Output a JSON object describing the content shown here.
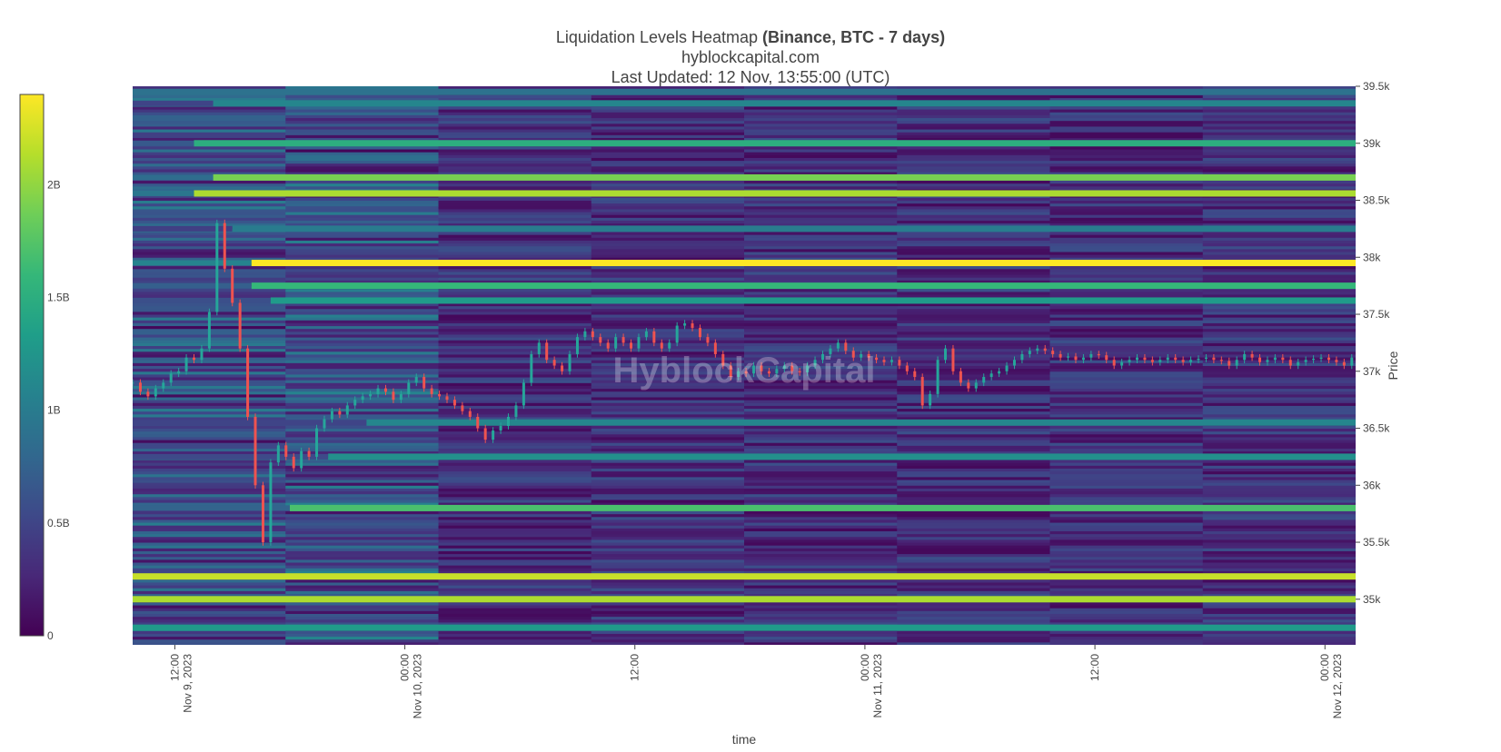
{
  "header": {
    "title_main": "Liquidation Levels Heatmap ",
    "title_bold": "(Binance, BTC - 7 days)",
    "subtitle": "hyblockcapital.com",
    "updated": "Last Updated: 12 Nov, 13:55:00 (UTC)"
  },
  "watermark": "HyblockCapital",
  "colors": {
    "scale": [
      "#440154",
      "#482878",
      "#3e4989",
      "#31688e",
      "#26828e",
      "#1f9e89",
      "#35b779",
      "#6ece58",
      "#b5de2b",
      "#fde725"
    ],
    "candle_up": "#26a69a",
    "candle_down": "#ef5350"
  },
  "chart_data": {
    "type": "heatmap",
    "title": "Liquidation Levels Heatmap (Binance, BTC - 7 days)",
    "xlabel": "time",
    "ylabel": "Price",
    "y_range": [
      34600,
      39500
    ],
    "y_ticks": [
      {
        "value": 35000,
        "label": "35k"
      },
      {
        "value": 35500,
        "label": "35.5k"
      },
      {
        "value": 36000,
        "label": "36k"
      },
      {
        "value": 36500,
        "label": "36.5k"
      },
      {
        "value": 37000,
        "label": "37k"
      },
      {
        "value": 37500,
        "label": "37.5k"
      },
      {
        "value": 38000,
        "label": "38k"
      },
      {
        "value": 38500,
        "label": "38.5k"
      },
      {
        "value": 39000,
        "label": "39k"
      },
      {
        "value": 39500,
        "label": "39.5k"
      }
    ],
    "x_range_hours": [
      -2.2,
      61.6
    ],
    "x_ticks": [
      {
        "hour": 0,
        "line1": "12:00",
        "line2": "Nov 9, 2023"
      },
      {
        "hour": 12,
        "line1": "00:00",
        "line2": "Nov 10, 2023"
      },
      {
        "hour": 24,
        "line1": "12:00",
        "line2": ""
      },
      {
        "hour": 36,
        "line1": "00:00",
        "line2": "Nov 11, 2023"
      },
      {
        "hour": 48,
        "line1": "12:00",
        "line2": ""
      },
      {
        "hour": 60,
        "line1": "00:00",
        "line2": "Nov 12, 2023"
      },
      {
        "hour": 72,
        "line1": "12:00",
        "line2": ""
      }
    ],
    "colorbar": {
      "min": 0,
      "max": 2400000000.0,
      "ticks": [
        {
          "value": 0,
          "label": "0"
        },
        {
          "value": 500000000.0,
          "label": "0.5B"
        },
        {
          "value": 1000000000.0,
          "label": "1B"
        },
        {
          "value": 1500000000.0,
          "label": "1.5B"
        },
        {
          "value": 2000000000.0,
          "label": "2B"
        }
      ]
    },
    "liquidation_bands": [
      {
        "price": 39450,
        "value": 900000000.0,
        "start_hour": -2.2
      },
      {
        "price": 39350,
        "value": 1100000000.0,
        "start_hour": 2
      },
      {
        "price": 39000,
        "value": 1500000000.0,
        "start_hour": 1
      },
      {
        "price": 38700,
        "value": 1900000000.0,
        "start_hour": 2
      },
      {
        "price": 38560,
        "value": 2100000000.0,
        "start_hour": 1
      },
      {
        "price": 38250,
        "value": 1000000000.0,
        "start_hour": 3
      },
      {
        "price": 37950,
        "value": 2400000000.0,
        "start_hour": 4
      },
      {
        "price": 37750,
        "value": 1600000000.0,
        "start_hour": 4
      },
      {
        "price": 37620,
        "value": 1300000000.0,
        "start_hour": 5
      },
      {
        "price": 36550,
        "value": 1100000000.0,
        "start_hour": 10
      },
      {
        "price": 36250,
        "value": 1200000000.0,
        "start_hour": 8
      },
      {
        "price": 35800,
        "value": 1700000000.0,
        "start_hour": 6
      },
      {
        "price": 35200,
        "value": 2200000000.0,
        "start_hour": -2.2
      },
      {
        "price": 35000,
        "value": 2100000000.0,
        "start_hour": -2.2
      },
      {
        "price": 34750,
        "value": 1300000000.0,
        "start_hour": -2.2
      }
    ],
    "price_series": {
      "start_hour": -2.2,
      "step_hours": 0.4,
      "close": [
        36900,
        36820,
        36780,
        36850,
        36900,
        36980,
        37000,
        37120,
        37100,
        37200,
        37520,
        38300,
        37900,
        37600,
        37200,
        36600,
        36000,
        35500,
        36200,
        36350,
        36250,
        36150,
        36300,
        36250,
        36500,
        36580,
        36650,
        36620,
        36700,
        36750,
        36780,
        36800,
        36850,
        36820,
        36750,
        36800,
        36900,
        36950,
        36850,
        36800,
        36780,
        36750,
        36700,
        36650,
        36600,
        36500,
        36400,
        36480,
        36520,
        36600,
        36700,
        36900,
        37150,
        37250,
        37100,
        37050,
        37000,
        37150,
        37300,
        37350,
        37300,
        37250,
        37200,
        37300,
        37250,
        37200,
        37300,
        37350,
        37250,
        37200,
        37250,
        37400,
        37420,
        37380,
        37300,
        37250,
        37150,
        37050,
        36950,
        37000,
        36980,
        37050,
        37000,
        36980,
        37020,
        37050,
        37000,
        36990,
        37050,
        37100,
        37150,
        37200,
        37250,
        37180,
        37120,
        37150,
        37120,
        37100,
        37080,
        37100,
        37050,
        37000,
        36950,
        36700,
        36800,
        37100,
        37200,
        37000,
        36900,
        36850,
        36900,
        36950,
        36980,
        37000,
        37050,
        37100,
        37150,
        37180,
        37200,
        37180,
        37150,
        37120,
        37130,
        37100,
        37120,
        37150,
        37140,
        37100,
        37050,
        37080,
        37100,
        37120,
        37100,
        37080,
        37100,
        37120,
        37100,
        37080,
        37100,
        37110,
        37120,
        37100,
        37090,
        37050,
        37100,
        37150,
        37120,
        37080,
        37100,
        37120,
        37100,
        37050,
        37080,
        37100,
        37110,
        37120,
        37100,
        37080,
        37050,
        37120
      ]
    },
    "grid": false,
    "legend": "colorbar-left"
  }
}
